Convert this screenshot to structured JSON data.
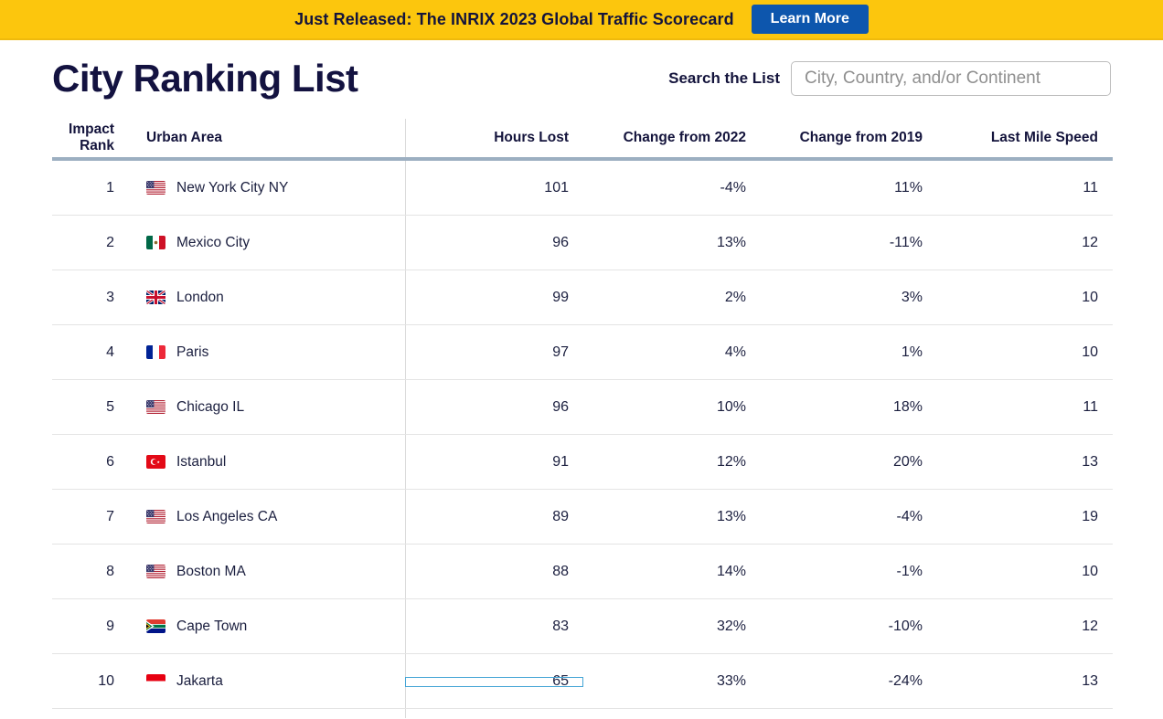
{
  "banner": {
    "text": "Just Released: The INRIX 2023 Global Traffic Scorecard",
    "button_label": "Learn More",
    "background_color": "#FCC60D",
    "button_color": "#0D56AD"
  },
  "page": {
    "title": "City Ranking List",
    "search_label": "Search the List",
    "search_placeholder": "City, Country, and/or Continent",
    "search_value": ""
  },
  "table": {
    "columns": [
      "Impact Rank",
      "Urban Area",
      "Hours Lost",
      "Change from 2022",
      "Change from 2019",
      "Last Mile Speed"
    ],
    "rows": [
      {
        "rank": "1",
        "flag": "us",
        "city": "New York City NY",
        "hours_lost": "101",
        "change_2022": "-4%",
        "change_2019": "11%",
        "last_mile_speed": "11"
      },
      {
        "rank": "2",
        "flag": "mx",
        "city": "Mexico City",
        "hours_lost": "96",
        "change_2022": "13%",
        "change_2019": "-11%",
        "last_mile_speed": "12"
      },
      {
        "rank": "3",
        "flag": "gb",
        "city": "London",
        "hours_lost": "99",
        "change_2022": "2%",
        "change_2019": "3%",
        "last_mile_speed": "10"
      },
      {
        "rank": "4",
        "flag": "fr",
        "city": "Paris",
        "hours_lost": "97",
        "change_2022": "4%",
        "change_2019": "1%",
        "last_mile_speed": "10"
      },
      {
        "rank": "5",
        "flag": "us",
        "city": "Chicago IL",
        "hours_lost": "96",
        "change_2022": "10%",
        "change_2019": "18%",
        "last_mile_speed": "11"
      },
      {
        "rank": "6",
        "flag": "tr",
        "city": "Istanbul",
        "hours_lost": "91",
        "change_2022": "12%",
        "change_2019": "20%",
        "last_mile_speed": "13"
      },
      {
        "rank": "7",
        "flag": "us",
        "city": "Los Angeles CA",
        "hours_lost": "89",
        "change_2022": "13%",
        "change_2019": "-4%",
        "last_mile_speed": "19"
      },
      {
        "rank": "8",
        "flag": "us",
        "city": "Boston MA",
        "hours_lost": "88",
        "change_2022": "14%",
        "change_2019": "-1%",
        "last_mile_speed": "10"
      },
      {
        "rank": "9",
        "flag": "za",
        "city": "Cape Town",
        "hours_lost": "83",
        "change_2022": "32%",
        "change_2019": "-10%",
        "last_mile_speed": "12"
      },
      {
        "rank": "10",
        "flag": "id",
        "city": "Jakarta",
        "hours_lost": "65",
        "change_2022": "33%",
        "change_2019": "-24%",
        "last_mile_speed": "13"
      }
    ],
    "focused_cell": {
      "row_index": 9,
      "column": "hours_lost",
      "border_color": "#45A5D6"
    },
    "header_rule_color": "#9CAFC1"
  }
}
